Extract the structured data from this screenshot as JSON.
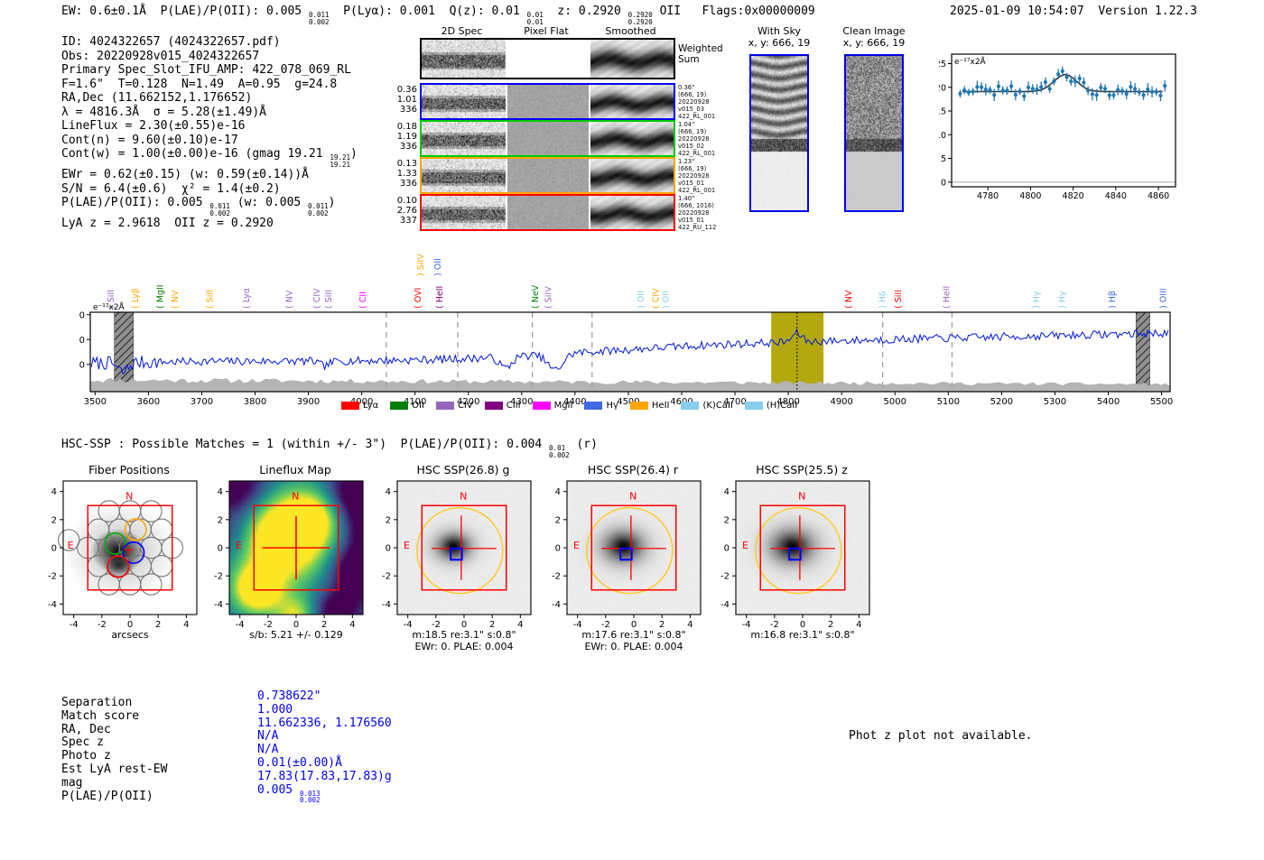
{
  "header": {
    "segments": [
      {
        "t": "EW: 0.6±0.1Å  P(LAE)/P(OII): 0.005 "
      },
      {
        "sup": "0.011",
        "sub": "0.002"
      },
      {
        "t": "  P(Lyα): 0.001  Q(z): 0.01 "
      },
      {
        "sup": "0.01",
        "sub": "0.01"
      },
      {
        "t": "  z: 0.2920 "
      },
      {
        "sup": "0.2920",
        "sub": "0.2920"
      },
      {
        "t": " OII   Flags:0x00000009"
      }
    ],
    "datetime": "2025-01-09 10:54:07  Version 1.22.3"
  },
  "info": {
    "lines": [
      [
        {
          "t": "ID: 4024322657 (4024322657.pdf)"
        }
      ],
      [
        {
          "t": "Obs: 20220928v015_4024322657"
        }
      ],
      [
        {
          "t": "Primary Spec_Slot_IFU_AMP: 422_078_069_RL"
        }
      ],
      [
        {
          "t": "F=1.6\"  T=0.128  N=1.49  A=0.95  g=24.8"
        }
      ],
      [
        {
          "t": "RA,Dec (11.662152,1.176652)"
        }
      ],
      [
        {
          "t": "λ = 4816.3Å  σ = 5.28(±1.49)Å"
        }
      ],
      [
        {
          "t": "LineFlux = 2.30(±0.55)e-16"
        }
      ],
      [
        {
          "t": "Cont(n) = 9.60(±0.10)e-17"
        }
      ],
      [
        {
          "t": "Cont(w) = 1.00(±0.00)e-16 (gmag 19.21 "
        },
        {
          "sup": "19.21",
          "sub": "19.21"
        },
        {
          "t": ")"
        }
      ],
      [
        {
          "t": "EWr = 0.62(±0.15) (w: 0.59(±0.14))Å"
        }
      ],
      [
        {
          "t": "S/N = 6.4(±0.6)  χ² = 1.4(±0.2)"
        }
      ],
      [
        {
          "t": "P(LAE)/P(OII): 0.005 "
        },
        {
          "sup": "0.011",
          "sub": "0.002"
        },
        {
          "t": " (w: 0.005 "
        },
        {
          "sup": "0.011",
          "sub": "0.002"
        },
        {
          "t": ")"
        }
      ],
      [
        {
          "t": "LyA z = 2.9618  OII z = 0.2920"
        }
      ]
    ]
  },
  "spec2d": {
    "headers": [
      "2D Spec",
      "Pixel Flat",
      "Smoothed"
    ],
    "rows": [
      {
        "border": "#000000",
        "left": null,
        "right": [
          "Weighted",
          "Sum"
        ]
      },
      {
        "border": "#0000ff",
        "left": [
          "0.36",
          "1.01",
          "336"
        ],
        "right": [
          "0.36\"",
          "(666, 19)",
          "20220928",
          "v015_03",
          "422_RL_001"
        ]
      },
      {
        "border": "#00cc00",
        "left": [
          "0.18",
          "1.19",
          "336"
        ],
        "right": [
          "1.04\"",
          "(666, 19)",
          "20220928",
          "v015_02",
          "422_RL_001"
        ]
      },
      {
        "border": "#ffa500",
        "left": [
          "0.13",
          "1.33",
          "336"
        ],
        "right": [
          "1.23\"",
          "(666, 19)",
          "20220928",
          "v015_01",
          "422_RL_001"
        ]
      },
      {
        "border": "#ff0000",
        "left": [
          "0.10",
          "2.76",
          "337"
        ],
        "right": [
          "1.40\"",
          "(666, 1016)",
          "20220928",
          "v015_01",
          "422_RU_112"
        ]
      }
    ]
  },
  "sky": {
    "panels": [
      {
        "title": "With Sky",
        "subtitle": "x, y: 666, 19",
        "type": "sky"
      },
      {
        "title": "Clean Image",
        "subtitle": "x, y: 666, 19",
        "type": "clean"
      }
    ]
  },
  "hsc_match": {
    "segments": [
      {
        "t": "HSC-SSP : Possible Matches = 1 (within +/- 3\")  P(LAE)/P(OII): 0.004 "
      },
      {
        "sup": "0.01",
        "sub": "0.002"
      },
      {
        "t": " (r)"
      }
    ]
  },
  "chart_data": [
    {
      "id": "emission-line-fit",
      "type": "scatter",
      "title": "",
      "unit_label": "e⁻¹⁷x2Å",
      "xlim": [
        4763,
        4868
      ],
      "ylim": [
        -1,
        27
      ],
      "x_ticks": [
        4780,
        4800,
        4820,
        4840,
        4860
      ],
      "y_ticks": [
        0,
        5,
        10,
        15,
        20,
        25
      ],
      "point_color": "#1f77b4",
      "fit": {
        "continuum": 19.1,
        "center": 4816.3,
        "sigma": 5.28,
        "amplitude": 3.6
      },
      "points": {
        "x_start": 4767,
        "x_step": 2,
        "n": 49,
        "scatter": 2.3,
        "err": 0.9
      }
    },
    {
      "id": "full-spectrum",
      "type": "line",
      "title": "",
      "unit_label": "e⁻¹⁷x2Å",
      "xlabel": "",
      "ylabel": "",
      "xlim": [
        3491,
        5516
      ],
      "ylim": [
        -1,
        31
      ],
      "x_ticks": [
        3500,
        3600,
        3700,
        3800,
        3900,
        4000,
        4100,
        4200,
        4300,
        4400,
        4500,
        4600,
        4700,
        4800,
        4900,
        5000,
        5100,
        5200,
        5300,
        5400,
        5500
      ],
      "y_ticks": [
        10,
        20,
        30
      ],
      "line_color": "#0016dd",
      "detected_line": 4816.3,
      "highlight_band": [
        4768,
        4866
      ],
      "highlight_color": "#b3a80e",
      "hatch_bands": [
        [
          3536,
          3572
        ],
        [
          5452,
          5478
        ]
      ],
      "dashed_lines": [
        4046,
        4180,
        4320,
        4432,
        4977,
        5107
      ],
      "profile": {
        "low_level": 11.2,
        "rise_center": 4380,
        "rise_amp": 6.4,
        "end_slope": 0.005,
        "bump_amp": 3.5,
        "bump_sigma": 9,
        "dips": [
          [
            4363,
            6.5,
            14
          ],
          [
            4270,
            4.5,
            11
          ],
          [
            3552,
            4.0,
            9
          ],
          [
            3930,
            2.0,
            9
          ]
        ]
      },
      "emission_labels": [
        {
          "name": "SiII",
          "paren": "(",
          "wave": 3530,
          "color": "#9467bd",
          "row": 0
        },
        {
          "name": "Lyβ",
          "paren": "(",
          "wave": 3576,
          "color": "#ffa500",
          "row": 0
        },
        {
          "name": "MgII",
          "paren": "(",
          "wave": 3622,
          "color": "#008000",
          "row": 0
        },
        {
          "name": "NV",
          "paren": "(",
          "wave": 3650,
          "color": "#ffa500",
          "row": 0
        },
        {
          "name": "SiII",
          "paren": "(",
          "wave": 3715,
          "color": "#ffa500",
          "row": 0
        },
        {
          "name": "Lyα",
          "paren": "(",
          "wave": 3784,
          "color": "#9467bd",
          "row": 0
        },
        {
          "name": "NV",
          "paren": "(",
          "wave": 3864,
          "color": "#9467bd",
          "row": 0
        },
        {
          "name": "CIV",
          "paren": "(",
          "wave": 3916,
          "color": "#9467bd",
          "row": 0
        },
        {
          "name": "SiII",
          "paren": "(",
          "wave": 3938,
          "color": "#9467bd",
          "row": 0
        },
        {
          "name": "CII",
          "paren": "(",
          "wave": 4002,
          "color": "#ff00ff",
          "row": 0
        },
        {
          "name": "OVI",
          "paren": "(",
          "wave": 4106,
          "color": "#ff0000",
          "row": 0
        },
        {
          "name": "SiIV",
          "paren": ")",
          "wave": 4111,
          "color": "#ffa500",
          "row": 1
        },
        {
          "name": "OII",
          "paren": ")",
          "wave": 4143,
          "color": "#4169e1",
          "row": 1
        },
        {
          "name": "HeII",
          "paren": "(",
          "wave": 4146,
          "color": "#800080",
          "row": 0
        },
        {
          "name": "NeV",
          "paren": "(",
          "wave": 4326,
          "color": "#008000",
          "row": 0
        },
        {
          "name": "SiIV",
          "paren": "(",
          "wave": 4350,
          "color": "#9467bd",
          "row": 0
        },
        {
          "name": "OII",
          "paren": ")",
          "wave": 4524,
          "color": "#87ceeb",
          "row": 0
        },
        {
          "name": "CIV",
          "paren": "(",
          "wave": 4552,
          "color": "#ffa500",
          "row": 0
        },
        {
          "name": "OII",
          "paren": ")",
          "wave": 4570,
          "color": "#87ceeb",
          "row": 0
        },
        {
          "name": "NV",
          "paren": "(",
          "wave": 4913,
          "color": "#ff0000",
          "row": 0
        },
        {
          "name": "Hδ",
          "paren": ")",
          "wave": 4977,
          "color": "#87ceeb",
          "row": 0
        },
        {
          "name": "SiII",
          "paren": "(",
          "wave": 5006,
          "color": "#ff0000",
          "row": 0
        },
        {
          "name": "HeII",
          "paren": "(",
          "wave": 5097,
          "color": "#9467bd",
          "row": 0
        },
        {
          "name": "Hγ",
          "paren": ")",
          "wave": 5265,
          "color": "#87ceeb",
          "row": 0
        },
        {
          "name": "Hγ",
          "paren": ")",
          "wave": 5314,
          "color": "#87ceeb",
          "row": 0
        },
        {
          "name": "Hβ",
          "paren": ")",
          "wave": 5408,
          "color": "#4169e1",
          "row": 0
        },
        {
          "name": "OIII",
          "paren": ")",
          "wave": 5503,
          "color": "#4169e1",
          "row": 0
        }
      ],
      "legend": [
        {
          "label": "Lyα",
          "color": "#ff0000"
        },
        {
          "label": "OII",
          "color": "#008000"
        },
        {
          "label": "CIV",
          "color": "#9467bd"
        },
        {
          "label": "CIII",
          "color": "#800080"
        },
        {
          "label": "MgII",
          "color": "#ff00ff"
        },
        {
          "label": "Hγ",
          "color": "#4169e1"
        },
        {
          "label": "HeII",
          "color": "#ffa500"
        },
        {
          "label": "(K)CaII",
          "color": "#87ceeb"
        },
        {
          "label": "(H)CaII",
          "color": "#87ceeb"
        }
      ]
    }
  ],
  "cutouts": {
    "x_ticks": [
      -4,
      -2,
      0,
      2,
      4
    ],
    "y_ticks": [
      -4,
      -2,
      0,
      2,
      4
    ],
    "panels": [
      {
        "title": "Fiber Positions",
        "type": "fiber",
        "xlabel": "arcsecs",
        "sub": null,
        "sub2": null
      },
      {
        "title": "Lineflux Map",
        "type": "flux",
        "xlabel": null,
        "sub": "s/b: 5.21 +/- 0.129",
        "sub2": null
      },
      {
        "title": "HSC SSP(26.8) g",
        "type": "hsc",
        "xlabel": null,
        "sub": "m:18.5  re:3.1\"  s:0.8\"",
        "sub2": "EWr: 0. PLAE: 0.004"
      },
      {
        "title": "HSC SSP(26.4) r",
        "type": "hsc",
        "xlabel": null,
        "sub": "m:17.6  re:3.1\"  s:0.8\"",
        "sub2": "EWr: 0. PLAE: 0.004"
      },
      {
        "title": "HSC SSP(25.5) z",
        "type": "hsc",
        "xlabel": null,
        "sub": "m:16.8  re:3.1\"  s:0.8\"",
        "sub2": null
      }
    ],
    "compass": {
      "north": "N",
      "east": "E"
    }
  },
  "match_table": {
    "rows": [
      {
        "label": "Separation",
        "value": [
          {
            "t": "0.738622\""
          }
        ]
      },
      {
        "label": "Match score",
        "value": [
          {
            "t": "1.000"
          }
        ]
      },
      {
        "label": "RA, Dec",
        "value": [
          {
            "t": "11.662336, 1.176560"
          }
        ]
      },
      {
        "label": "Spec z",
        "value": [
          {
            "t": "N/A"
          }
        ]
      },
      {
        "label": "Photo z",
        "value": [
          {
            "t": "N/A"
          }
        ]
      },
      {
        "label": "Est LyA rest-EW",
        "value": [
          {
            "t": "0.01(±0.00)Å"
          }
        ]
      },
      {
        "label": "mag",
        "value": [
          {
            "t": "17.83(17.83,17.83)g"
          }
        ]
      },
      {
        "label": "P(LAE)/P(OII)",
        "value": [
          {
            "t": "0.005 "
          },
          {
            "sup": "0.013",
            "sub": "0.002"
          }
        ]
      }
    ]
  },
  "photz_message": "Phot z plot not available."
}
